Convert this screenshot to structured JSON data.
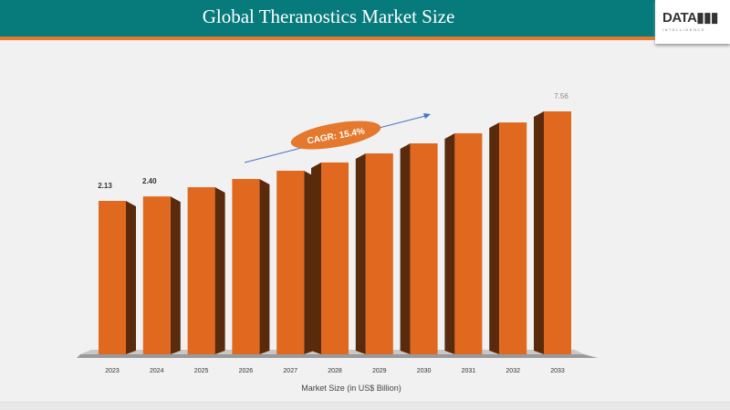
{
  "header": {
    "title": "Global Theranostics Market Size",
    "logo": "DATAM INTELLIGENCE"
  },
  "colors": {
    "header": "#077a7c",
    "accent": "#e4782c",
    "bar_front": "#e0691f",
    "bar_side": "#5a2a0c"
  },
  "chart_data": {
    "type": "bar",
    "title": "Global Theranostics Market Size",
    "xlabel": "Market Size (in US$ Billion)",
    "ylabel": "",
    "categories": [
      "2023",
      "2024",
      "2025",
      "2026",
      "2027",
      "2028",
      "2029",
      "2030",
      "2031",
      "2032",
      "2033"
    ],
    "values": [
      2.13,
      2.4,
      2.96,
      3.46,
      3.96,
      4.46,
      5.01,
      5.62,
      6.23,
      6.89,
      7.56
    ],
    "data_labels": {
      "0": "2.13",
      "1": "2.40",
      "10": "7.56"
    },
    "annotation": "CAGR: 15.4%",
    "grid": false
  }
}
